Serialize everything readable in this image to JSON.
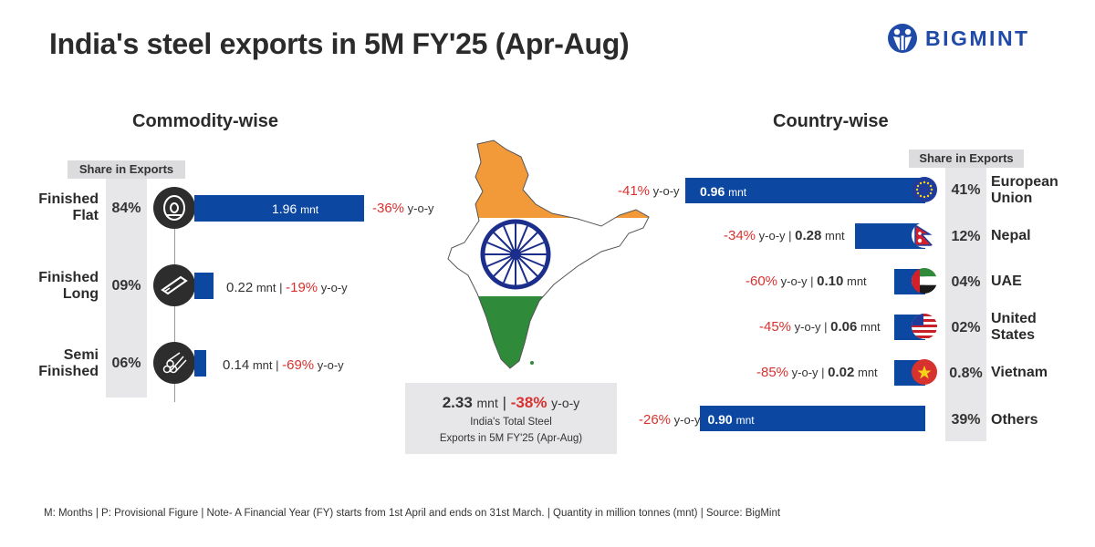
{
  "title": "India's steel exports in 5M FY'25 (Apr-Aug)",
  "brand": {
    "name": "BIGMINT",
    "color": "#1f4aa8"
  },
  "colors": {
    "bar": "#0c47a1",
    "negative": "#d8322f",
    "panel": "#e7e7e9",
    "saffron": "#f29a3a",
    "green": "#2f8a3a",
    "chakra": "#1c2e8c"
  },
  "left_panel": {
    "heading": "Commodity-wise",
    "share_header": "Share in Exports",
    "unit": "mnt",
    "yoy_suffix": "y-o-y",
    "icons": [
      "coil-icon",
      "long-bars-icon",
      "pipes-icon"
    ]
  },
  "right_panel": {
    "heading": "Country-wise",
    "share_header": "Share in Exports",
    "unit": "mnt",
    "yoy_suffix": "y-o-y",
    "flags": [
      "eu-flag-icon",
      "nepal-flag-icon",
      "uae-flag-icon",
      "usa-flag-icon",
      "vietnam-flag-icon"
    ]
  },
  "center": {
    "map": "india-map-icon",
    "total_value": "2.33",
    "total_unit": "mnt",
    "total_change": "-38%",
    "yoy_suffix": "y-o-y",
    "caption_line1": "India's Total Steel",
    "caption_line2": "Exports in 5M FY'25 (Apr-Aug)"
  },
  "footer": "M: Months | P: Provisional Figure | Note- A Financial Year (FY) starts from 1st April and ends on 31st March. | Quantity in million tonnes (mnt) | Source: BigMint",
  "chart_data": [
    {
      "type": "bar",
      "title": "Commodity-wise",
      "categories": [
        "Finished Flat",
        "Finished Long",
        "Semi Finished"
      ],
      "values": [
        1.96,
        0.22,
        0.14
      ],
      "value_labels": [
        "1.96",
        "0.22",
        "0.14"
      ],
      "share_labels": [
        "84%",
        "09%",
        "06%"
      ],
      "yoy_labels": [
        "-36%",
        "-19%",
        "-69%"
      ]
    },
    {
      "type": "bar",
      "title": "Country-wise",
      "categories": [
        "European Union",
        "Nepal",
        "UAE",
        "United States",
        "Vietnam",
        "Others"
      ],
      "values": [
        0.96,
        0.28,
        0.1,
        0.06,
        0.02,
        0.9
      ],
      "value_labels": [
        "0.96",
        "0.28",
        "0.10",
        "0.06",
        "0.02",
        "0.90"
      ],
      "share_labels": [
        "41%",
        "12%",
        "04%",
        "02%",
        "0.8%",
        "39%"
      ],
      "yoy_labels": [
        "-41%",
        "-34%",
        "-60%",
        "-45%",
        "-85%",
        "-26%"
      ]
    }
  ]
}
